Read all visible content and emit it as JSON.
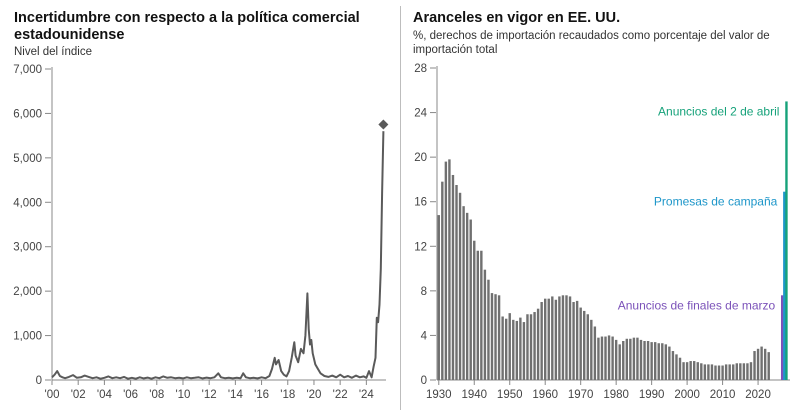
{
  "chart_data": [
    {
      "type": "line",
      "title": "Incertidumbre con respecto a la política comercial estadounidense",
      "ylabel": "Nivel del índice",
      "ylim": [
        0,
        7000
      ],
      "yticks": [
        "0",
        "1,000",
        "2,000",
        "3,000",
        "4,000",
        "5,000",
        "6,000",
        "7,000"
      ],
      "xlim": [
        2000,
        2025.5
      ],
      "xticks": [
        "'00",
        "'02",
        "'04",
        "'06",
        "'08",
        "'10",
        "'12",
        "'14",
        "'16",
        "'18",
        "'20",
        "'22",
        "'24"
      ],
      "series": [
        {
          "color": "#5a5a5a",
          "points": [
            [
              2000.0,
              60
            ],
            [
              2000.2,
              120
            ],
            [
              2000.4,
              200
            ],
            [
              2000.6,
              90
            ],
            [
              2000.8,
              60
            ],
            [
              2001.0,
              40
            ],
            [
              2001.3,
              70
            ],
            [
              2001.6,
              110
            ],
            [
              2001.9,
              50
            ],
            [
              2002.2,
              60
            ],
            [
              2002.5,
              100
            ],
            [
              2002.8,
              70
            ],
            [
              2003.1,
              40
            ],
            [
              2003.4,
              60
            ],
            [
              2003.7,
              30
            ],
            [
              2004.0,
              50
            ],
            [
              2004.3,
              80
            ],
            [
              2004.6,
              40
            ],
            [
              2004.9,
              60
            ],
            [
              2005.2,
              40
            ],
            [
              2005.5,
              70
            ],
            [
              2005.8,
              30
            ],
            [
              2006.1,
              50
            ],
            [
              2006.4,
              30
            ],
            [
              2006.7,
              60
            ],
            [
              2007.0,
              35
            ],
            [
              2007.3,
              55
            ],
            [
              2007.6,
              30
            ],
            [
              2007.9,
              60
            ],
            [
              2008.2,
              40
            ],
            [
              2008.5,
              80
            ],
            [
              2008.8,
              50
            ],
            [
              2009.1,
              60
            ],
            [
              2009.4,
              40
            ],
            [
              2009.7,
              50
            ],
            [
              2010.0,
              35
            ],
            [
              2010.3,
              60
            ],
            [
              2010.6,
              40
            ],
            [
              2010.9,
              50
            ],
            [
              2011.2,
              60
            ],
            [
              2011.5,
              35
            ],
            [
              2011.8,
              55
            ],
            [
              2012.1,
              40
            ],
            [
              2012.4,
              60
            ],
            [
              2012.7,
              150
            ],
            [
              2012.9,
              60
            ],
            [
              2013.2,
              40
            ],
            [
              2013.5,
              50
            ],
            [
              2013.8,
              35
            ],
            [
              2014.1,
              50
            ],
            [
              2014.4,
              40
            ],
            [
              2014.6,
              150
            ],
            [
              2014.8,
              60
            ],
            [
              2015.1,
              40
            ],
            [
              2015.4,
              50
            ],
            [
              2015.7,
              35
            ],
            [
              2016.0,
              60
            ],
            [
              2016.3,
              40
            ],
            [
              2016.6,
              90
            ],
            [
              2016.8,
              250
            ],
            [
              2017.0,
              500
            ],
            [
              2017.1,
              350
            ],
            [
              2017.3,
              450
            ],
            [
              2017.5,
              200
            ],
            [
              2017.7,
              120
            ],
            [
              2017.9,
              80
            ],
            [
              2018.1,
              200
            ],
            [
              2018.3,
              500
            ],
            [
              2018.5,
              850
            ],
            [
              2018.6,
              550
            ],
            [
              2018.8,
              400
            ],
            [
              2019.0,
              700
            ],
            [
              2019.2,
              600
            ],
            [
              2019.35,
              1000
            ],
            [
              2019.5,
              1950
            ],
            [
              2019.6,
              1150
            ],
            [
              2019.7,
              800
            ],
            [
              2019.8,
              900
            ],
            [
              2019.9,
              600
            ],
            [
              2020.1,
              350
            ],
            [
              2020.3,
              250
            ],
            [
              2020.5,
              150
            ],
            [
              2020.8,
              90
            ],
            [
              2021.1,
              70
            ],
            [
              2021.4,
              100
            ],
            [
              2021.7,
              60
            ],
            [
              2022.0,
              120
            ],
            [
              2022.3,
              60
            ],
            [
              2022.6,
              90
            ],
            [
              2022.9,
              50
            ],
            [
              2023.2,
              100
            ],
            [
              2023.5,
              60
            ],
            [
              2023.8,
              80
            ],
            [
              2024.0,
              50
            ],
            [
              2024.2,
              200
            ],
            [
              2024.4,
              60
            ],
            [
              2024.55,
              300
            ],
            [
              2024.7,
              500
            ],
            [
              2024.8,
              1400
            ],
            [
              2024.9,
              1300
            ],
            [
              2025.0,
              1700
            ],
            [
              2025.1,
              2500
            ],
            [
              2025.2,
              4200
            ],
            [
              2025.3,
              5600
            ]
          ]
        }
      ],
      "marker": {
        "x": 2025.3,
        "y": 5750,
        "shape": "diamond"
      }
    },
    {
      "type": "bar",
      "title": "Aranceles en vigor en EE. UU.",
      "ylabel": "%, derechos de importación recaudados como porcentaje del valor de importación total",
      "ylim": [
        0,
        28
      ],
      "yticks": [
        "0",
        "4",
        "8",
        "12",
        "16",
        "20",
        "24",
        "28"
      ],
      "xlim": [
        1929.5,
        2029
      ],
      "xticks": [
        "1930",
        "1940",
        "1950",
        "1960",
        "1970",
        "1980",
        "1990",
        "2000",
        "2010",
        "2020"
      ],
      "start_year": 1930,
      "bar_color": "#707070",
      "values": [
        14.8,
        17.8,
        19.6,
        19.8,
        18.4,
        17.5,
        16.8,
        15.6,
        15.0,
        14.4,
        12.5,
        11.6,
        11.6,
        9.9,
        9.0,
        7.8,
        7.7,
        7.6,
        5.7,
        5.5,
        6.0,
        5.4,
        5.3,
        5.6,
        5.2,
        5.9,
        5.9,
        6.1,
        6.4,
        7.0,
        7.3,
        7.3,
        7.5,
        7.2,
        7.5,
        7.6,
        7.6,
        7.5,
        7.0,
        7.1,
        6.5,
        6.2,
        5.9,
        5.4,
        4.8,
        3.8,
        3.9,
        3.9,
        4.0,
        3.9,
        3.6,
        3.2,
        3.5,
        3.7,
        3.7,
        3.8,
        3.8,
        3.6,
        3.5,
        3.5,
        3.4,
        3.4,
        3.3,
        3.3,
        3.2,
        3.0,
        2.6,
        2.3,
        2.0,
        1.6,
        1.6,
        1.7,
        1.7,
        1.6,
        1.5,
        1.4,
        1.4,
        1.4,
        1.3,
        1.3,
        1.3,
        1.4,
        1.4,
        1.4,
        1.5,
        1.5,
        1.5,
        1.5,
        1.6,
        2.6,
        2.8,
        3.0,
        2.8,
        2.5
      ],
      "annotations": [
        {
          "text": "Anuncios de finales de marzo",
          "value": 7.6,
          "color": "#7b52b9",
          "x": 2026.8
        },
        {
          "text": "Promesas de campaña",
          "value": 16.9,
          "color": "#1d96c9",
          "x": 2027.4
        },
        {
          "text": "Anuncios del 2 de abril",
          "value": 25.0,
          "color": "#16a27a",
          "x": 2028.0
        }
      ]
    }
  ]
}
